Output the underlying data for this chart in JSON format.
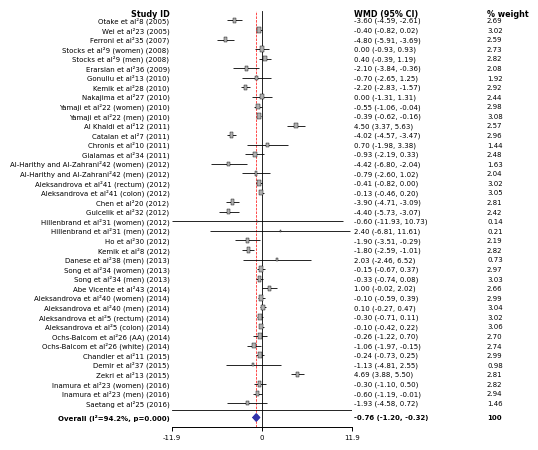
{
  "studies": [
    {
      "label": "Otake et al²8 (2005)",
      "wmd": -3.6,
      "ci_lo": -4.59,
      "ci_hi": -2.61,
      "weight": 2.69
    },
    {
      "label": "Wei et al²23 (2005)",
      "wmd": -0.4,
      "ci_lo": -0.82,
      "ci_hi": 0.02,
      "weight": 3.02
    },
    {
      "label": "Ferroni et al²35 (2007)",
      "wmd": -4.8,
      "ci_lo": -5.91,
      "ci_hi": -3.69,
      "weight": 2.59
    },
    {
      "label": "Stocks et al²9 (women) (2008)",
      "wmd": 0.0,
      "ci_lo": -0.93,
      "ci_hi": 0.93,
      "weight": 2.73
    },
    {
      "label": "Stocks et al²9 (men) (2008)",
      "wmd": 0.4,
      "ci_lo": -0.39,
      "ci_hi": 1.19,
      "weight": 2.82
    },
    {
      "label": "Erarslan et al²36 (2009)",
      "wmd": -2.1,
      "ci_lo": -3.84,
      "ci_hi": -0.36,
      "weight": 2.08
    },
    {
      "label": "Gonullu et al²13 (2010)",
      "wmd": -0.7,
      "ci_lo": -2.65,
      "ci_hi": 1.25,
      "weight": 1.92
    },
    {
      "label": "Kemik et al²28 (2010)",
      "wmd": -2.2,
      "ci_lo": -2.83,
      "ci_hi": -1.57,
      "weight": 2.92
    },
    {
      "label": "Nakajima et al²27 (2010)",
      "wmd": 0.0,
      "ci_lo": -1.31,
      "ci_hi": 1.31,
      "weight": 2.44
    },
    {
      "label": "Yamaji et al²22 (women) (2010)",
      "wmd": -0.55,
      "ci_lo": -1.06,
      "ci_hi": -0.04,
      "weight": 2.98
    },
    {
      "label": "Yamaji et al²22 (men) (2010)",
      "wmd": -0.39,
      "ci_lo": -0.62,
      "ci_hi": -0.16,
      "weight": 3.08
    },
    {
      "label": "Al Khaldi et al²12 (2011)",
      "wmd": 4.5,
      "ci_lo": 3.37,
      "ci_hi": 5.63,
      "weight": 2.57
    },
    {
      "label": "Catalan et al²7 (2011)",
      "wmd": -4.02,
      "ci_lo": -4.57,
      "ci_hi": -3.47,
      "weight": 2.96
    },
    {
      "label": "Chronis et al²10 (2011)",
      "wmd": 0.7,
      "ci_lo": -1.98,
      "ci_hi": 3.38,
      "weight": 1.44
    },
    {
      "label": "Gialamas et al²34 (2011)",
      "wmd": -0.93,
      "ci_lo": -2.19,
      "ci_hi": 0.33,
      "weight": 2.48
    },
    {
      "label": "Al-Harithy and Al-Zahrani²42 (women) (2012)",
      "wmd": -4.42,
      "ci_lo": -6.8,
      "ci_hi": -2.04,
      "weight": 1.63
    },
    {
      "label": "Al-Harithy and Al-Zahrani²42 (men) (2012)",
      "wmd": -0.79,
      "ci_lo": -2.6,
      "ci_hi": 1.02,
      "weight": 2.04
    },
    {
      "label": "Aleksandrova et al²41 (rectum) (2012)",
      "wmd": -0.41,
      "ci_lo": -0.82,
      "ci_hi": 0.0,
      "weight": 3.02
    },
    {
      "label": "Aleksandrova et al²41 (colon) (2012)",
      "wmd": -0.13,
      "ci_lo": -0.46,
      "ci_hi": 0.2,
      "weight": 3.05
    },
    {
      "label": "Chen et al²20 (2012)",
      "wmd": -3.9,
      "ci_lo": -4.71,
      "ci_hi": -3.09,
      "weight": 2.81
    },
    {
      "label": "Gulcelik et al²32 (2012)",
      "wmd": -4.4,
      "ci_lo": -5.73,
      "ci_hi": -3.07,
      "weight": 2.42
    },
    {
      "label": "Hillenbrand et al²31 (women) (2012)",
      "wmd": -0.6,
      "ci_lo": -11.93,
      "ci_hi": 10.73,
      "weight": 0.14
    },
    {
      "label": "Hillenbrand et al²31 (men) (2012)",
      "wmd": 2.4,
      "ci_lo": -6.81,
      "ci_hi": 11.61,
      "weight": 0.21
    },
    {
      "label": "Ho et al²30 (2012)",
      "wmd": -1.9,
      "ci_lo": -3.51,
      "ci_hi": -0.29,
      "weight": 2.19
    },
    {
      "label": "Kemik et al²8 (2012)",
      "wmd": -1.8,
      "ci_lo": -2.59,
      "ci_hi": -1.01,
      "weight": 2.82
    },
    {
      "label": "Danese et al²38 (men) (2013)",
      "wmd": 2.03,
      "ci_lo": -2.46,
      "ci_hi": 6.52,
      "weight": 0.73
    },
    {
      "label": "Song et al²34 (women) (2013)",
      "wmd": -0.15,
      "ci_lo": -0.67,
      "ci_hi": 0.37,
      "weight": 2.97
    },
    {
      "label": "Song et al²34 (men) (2013)",
      "wmd": -0.33,
      "ci_lo": -0.74,
      "ci_hi": 0.08,
      "weight": 3.03
    },
    {
      "label": "Abe Vicente et al²43 (2014)",
      "wmd": 1.0,
      "ci_lo": -0.02,
      "ci_hi": 2.02,
      "weight": 2.66
    },
    {
      "label": "Aleksandrova et al²40 (women) (2014)",
      "wmd": -0.1,
      "ci_lo": -0.59,
      "ci_hi": 0.39,
      "weight": 2.99
    },
    {
      "label": "Aleksandrova et al²40 (men) (2014)",
      "wmd": 0.1,
      "ci_lo": -0.27,
      "ci_hi": 0.47,
      "weight": 3.04
    },
    {
      "label": "Aleksandrova et al²5 (rectum) (2014)",
      "wmd": -0.3,
      "ci_lo": -0.71,
      "ci_hi": 0.11,
      "weight": 3.02
    },
    {
      "label": "Aleksandrova et al²5 (colon) (2014)",
      "wmd": -0.1,
      "ci_lo": -0.42,
      "ci_hi": 0.22,
      "weight": 3.06
    },
    {
      "label": "Ochs-Balcom et al²26 (AA) (2014)",
      "wmd": -0.26,
      "ci_lo": -1.22,
      "ci_hi": 0.7,
      "weight": 2.7
    },
    {
      "label": "Ochs-Balcom et al²26 (white) (2014)",
      "wmd": -1.06,
      "ci_lo": -1.97,
      "ci_hi": -0.15,
      "weight": 2.74
    },
    {
      "label": "Chandler et al²11 (2015)",
      "wmd": -0.24,
      "ci_lo": -0.73,
      "ci_hi": 0.25,
      "weight": 2.99
    },
    {
      "label": "Demir et al²37 (2015)",
      "wmd": -1.13,
      "ci_lo": -4.81,
      "ci_hi": 2.55,
      "weight": 0.98
    },
    {
      "label": "Zekri et al²13 (2015)",
      "wmd": 4.69,
      "ci_lo": 3.88,
      "ci_hi": 5.5,
      "weight": 2.81
    },
    {
      "label": "Inamura et al²23 (women) (2016)",
      "wmd": -0.3,
      "ci_lo": -1.1,
      "ci_hi": 0.5,
      "weight": 2.82
    },
    {
      "label": "Inamura et al²23 (men) (2016)",
      "wmd": -0.6,
      "ci_lo": -1.19,
      "ci_hi": -0.01,
      "weight": 2.94
    },
    {
      "label": "Saetang et al²25 (2016)",
      "wmd": -1.93,
      "ci_lo": -4.58,
      "ci_hi": 0.72,
      "weight": 1.46
    }
  ],
  "overall": {
    "wmd": -0.76,
    "ci_lo": -1.2,
    "ci_hi": -0.32,
    "label": "Overall (I²=94.2%, p=0.000)",
    "weight": 100
  },
  "xmin": -11.9,
  "xmax": 11.9,
  "xticks": [
    -11.9,
    0,
    11.9
  ],
  "header_wmd": "WMD (95% CI)",
  "header_weight": "% weight",
  "header_study": "Study ID",
  "box_color": "#b0b0b0",
  "diamond_color": "#3333aa",
  "bg_color": "white",
  "fontsize": 5.0,
  "header_fontsize": 5.8
}
